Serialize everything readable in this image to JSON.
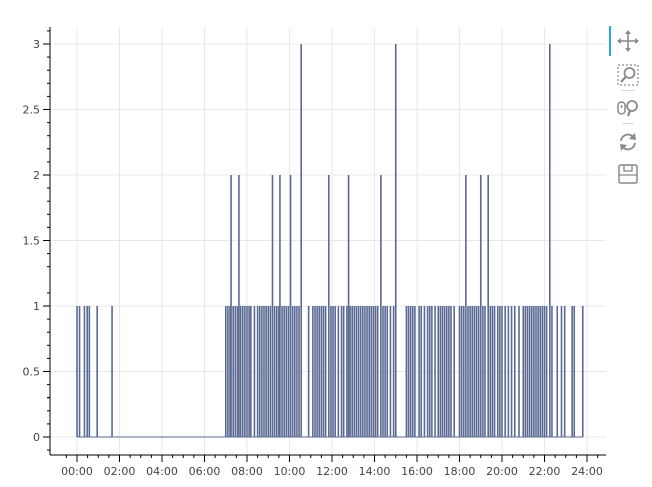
{
  "chart_data": {
    "type": "line",
    "title": "",
    "xlabel": "",
    "ylabel": "",
    "x_unit": "hours",
    "xlim": [
      -0.7,
      24.6
    ],
    "ylim": [
      -0.15,
      3.1
    ],
    "yticks": [
      0,
      0.5,
      1,
      1.5,
      2,
      2.5,
      3
    ],
    "ytick_labels": [
      "0",
      "0.5",
      "1",
      "1.5",
      "2",
      "2.5",
      "3"
    ],
    "xticks": [
      0,
      2,
      4,
      6,
      8,
      10,
      12,
      14,
      16,
      18,
      20,
      22,
      24
    ],
    "xtick_labels": [
      "00:00",
      "02:00",
      "04:00",
      "06:00",
      "08:00",
      "10:00",
      "12:00",
      "14:00",
      "16:00",
      "18:00",
      "20:00",
      "22:00",
      "24:00"
    ],
    "grid": true,
    "line_color": "#5b6a93",
    "spikes": [
      {
        "x": 0.0,
        "y": 1
      },
      {
        "x": 0.12,
        "y": 1
      },
      {
        "x": 0.35,
        "y": 1
      },
      {
        "x": 0.48,
        "y": 1
      },
      {
        "x": 0.58,
        "y": 1
      },
      {
        "x": 0.95,
        "y": 1
      },
      {
        "x": 1.65,
        "y": 1
      },
      {
        "x": 7.0,
        "y": 1
      },
      {
        "x": 7.1,
        "y": 1
      },
      {
        "x": 7.2,
        "y": 1
      },
      {
        "x": 7.25,
        "y": 2
      },
      {
        "x": 7.35,
        "y": 1
      },
      {
        "x": 7.45,
        "y": 1
      },
      {
        "x": 7.55,
        "y": 1
      },
      {
        "x": 7.62,
        "y": 2
      },
      {
        "x": 7.7,
        "y": 1
      },
      {
        "x": 7.8,
        "y": 1
      },
      {
        "x": 7.9,
        "y": 1
      },
      {
        "x": 8.0,
        "y": 1
      },
      {
        "x": 8.1,
        "y": 1
      },
      {
        "x": 8.18,
        "y": 1
      },
      {
        "x": 8.35,
        "y": 1
      },
      {
        "x": 8.5,
        "y": 1
      },
      {
        "x": 8.6,
        "y": 1
      },
      {
        "x": 8.7,
        "y": 1
      },
      {
        "x": 8.8,
        "y": 1
      },
      {
        "x": 8.9,
        "y": 1
      },
      {
        "x": 9.0,
        "y": 1
      },
      {
        "x": 9.1,
        "y": 1
      },
      {
        "x": 9.2,
        "y": 2
      },
      {
        "x": 9.3,
        "y": 1
      },
      {
        "x": 9.4,
        "y": 1
      },
      {
        "x": 9.5,
        "y": 1
      },
      {
        "x": 9.55,
        "y": 2
      },
      {
        "x": 9.65,
        "y": 1
      },
      {
        "x": 9.75,
        "y": 1
      },
      {
        "x": 9.85,
        "y": 1
      },
      {
        "x": 9.95,
        "y": 1
      },
      {
        "x": 10.05,
        "y": 2
      },
      {
        "x": 10.15,
        "y": 1
      },
      {
        "x": 10.25,
        "y": 1
      },
      {
        "x": 10.35,
        "y": 1
      },
      {
        "x": 10.45,
        "y": 1
      },
      {
        "x": 10.55,
        "y": 3
      },
      {
        "x": 10.9,
        "y": 1
      },
      {
        "x": 11.1,
        "y": 1
      },
      {
        "x": 11.2,
        "y": 1
      },
      {
        "x": 11.3,
        "y": 1
      },
      {
        "x": 11.4,
        "y": 1
      },
      {
        "x": 11.5,
        "y": 1
      },
      {
        "x": 11.6,
        "y": 1
      },
      {
        "x": 11.7,
        "y": 1
      },
      {
        "x": 11.85,
        "y": 2
      },
      {
        "x": 11.95,
        "y": 1
      },
      {
        "x": 12.05,
        "y": 1
      },
      {
        "x": 12.15,
        "y": 1
      },
      {
        "x": 12.3,
        "y": 1
      },
      {
        "x": 12.45,
        "y": 1
      },
      {
        "x": 12.55,
        "y": 1
      },
      {
        "x": 12.7,
        "y": 1
      },
      {
        "x": 12.78,
        "y": 2
      },
      {
        "x": 12.85,
        "y": 1
      },
      {
        "x": 12.95,
        "y": 1
      },
      {
        "x": 13.05,
        "y": 1
      },
      {
        "x": 13.15,
        "y": 1
      },
      {
        "x": 13.25,
        "y": 1
      },
      {
        "x": 13.35,
        "y": 1
      },
      {
        "x": 13.45,
        "y": 1
      },
      {
        "x": 13.55,
        "y": 1
      },
      {
        "x": 13.65,
        "y": 1
      },
      {
        "x": 13.75,
        "y": 1
      },
      {
        "x": 13.85,
        "y": 1
      },
      {
        "x": 13.95,
        "y": 1
      },
      {
        "x": 14.05,
        "y": 1
      },
      {
        "x": 14.15,
        "y": 1
      },
      {
        "x": 14.3,
        "y": 2
      },
      {
        "x": 14.4,
        "y": 1
      },
      {
        "x": 14.5,
        "y": 1
      },
      {
        "x": 14.6,
        "y": 1
      },
      {
        "x": 14.75,
        "y": 1
      },
      {
        "x": 14.9,
        "y": 1
      },
      {
        "x": 15.0,
        "y": 3
      },
      {
        "x": 15.5,
        "y": 1
      },
      {
        "x": 15.6,
        "y": 1
      },
      {
        "x": 15.7,
        "y": 1
      },
      {
        "x": 15.8,
        "y": 1
      },
      {
        "x": 15.9,
        "y": 1
      },
      {
        "x": 16.1,
        "y": 1
      },
      {
        "x": 16.2,
        "y": 1
      },
      {
        "x": 16.35,
        "y": 1
      },
      {
        "x": 16.5,
        "y": 1
      },
      {
        "x": 16.6,
        "y": 1
      },
      {
        "x": 16.7,
        "y": 1
      },
      {
        "x": 16.85,
        "y": 1
      },
      {
        "x": 17.0,
        "y": 1
      },
      {
        "x": 17.1,
        "y": 1
      },
      {
        "x": 17.2,
        "y": 1
      },
      {
        "x": 17.3,
        "y": 1
      },
      {
        "x": 17.4,
        "y": 1
      },
      {
        "x": 17.5,
        "y": 1
      },
      {
        "x": 17.6,
        "y": 1
      },
      {
        "x": 17.75,
        "y": 1
      },
      {
        "x": 18.0,
        "y": 1
      },
      {
        "x": 18.1,
        "y": 1
      },
      {
        "x": 18.2,
        "y": 1
      },
      {
        "x": 18.3,
        "y": 2
      },
      {
        "x": 18.4,
        "y": 1
      },
      {
        "x": 18.5,
        "y": 1
      },
      {
        "x": 18.6,
        "y": 1
      },
      {
        "x": 18.7,
        "y": 1
      },
      {
        "x": 18.8,
        "y": 1
      },
      {
        "x": 18.9,
        "y": 1
      },
      {
        "x": 19.0,
        "y": 2
      },
      {
        "x": 19.1,
        "y": 1
      },
      {
        "x": 19.2,
        "y": 1
      },
      {
        "x": 19.35,
        "y": 2
      },
      {
        "x": 19.45,
        "y": 1
      },
      {
        "x": 19.55,
        "y": 1
      },
      {
        "x": 19.65,
        "y": 1
      },
      {
        "x": 19.8,
        "y": 1
      },
      {
        "x": 19.9,
        "y": 1
      },
      {
        "x": 20.0,
        "y": 1
      },
      {
        "x": 20.15,
        "y": 1
      },
      {
        "x": 20.3,
        "y": 1
      },
      {
        "x": 20.45,
        "y": 1
      },
      {
        "x": 20.6,
        "y": 1
      },
      {
        "x": 20.8,
        "y": 1
      },
      {
        "x": 21.0,
        "y": 1
      },
      {
        "x": 21.1,
        "y": 1
      },
      {
        "x": 21.2,
        "y": 1
      },
      {
        "x": 21.3,
        "y": 1
      },
      {
        "x": 21.4,
        "y": 1
      },
      {
        "x": 21.5,
        "y": 1
      },
      {
        "x": 21.6,
        "y": 1
      },
      {
        "x": 21.7,
        "y": 1
      },
      {
        "x": 21.8,
        "y": 1
      },
      {
        "x": 21.9,
        "y": 1
      },
      {
        "x": 22.0,
        "y": 1
      },
      {
        "x": 22.1,
        "y": 1
      },
      {
        "x": 22.25,
        "y": 3
      },
      {
        "x": 22.35,
        "y": 1
      },
      {
        "x": 22.6,
        "y": 1
      },
      {
        "x": 22.8,
        "y": 1
      },
      {
        "x": 22.95,
        "y": 1
      },
      {
        "x": 23.3,
        "y": 1
      },
      {
        "x": 23.4,
        "y": 1
      },
      {
        "x": 23.8,
        "y": 1
      }
    ]
  },
  "toolbar": {
    "tools": [
      {
        "icon": "pan-icon",
        "label": "Pan",
        "active": true
      },
      {
        "icon": "box-zoom-icon",
        "label": "Box Zoom",
        "active": false
      },
      {
        "icon": "wheel-zoom-icon",
        "label": "Wheel Zoom",
        "active": false
      },
      {
        "icon": "reset-icon",
        "label": "Reset",
        "active": false
      },
      {
        "icon": "save-icon",
        "label": "Save",
        "active": false
      }
    ],
    "accent_color": "#26aae1"
  }
}
